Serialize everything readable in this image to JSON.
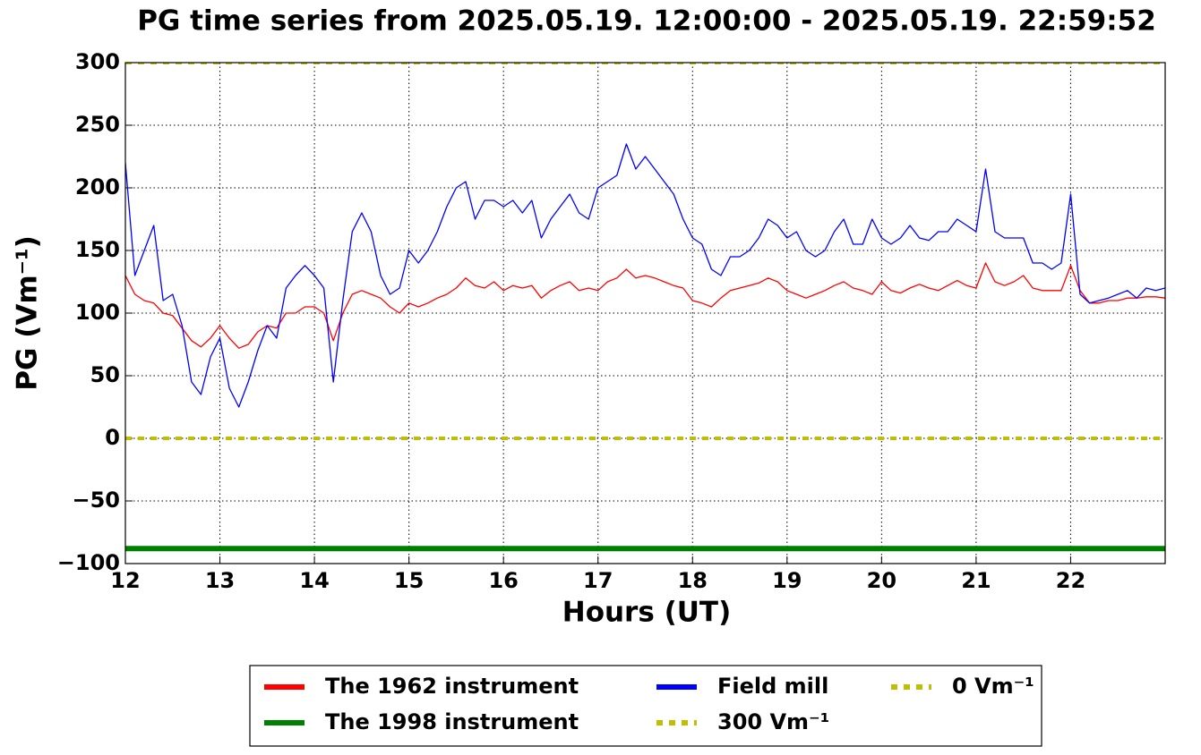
{
  "chart_data": {
    "type": "line",
    "title": "PG time series from 2025.05.19. 12:00:00 - 2025.05.19. 22:59:52",
    "xlabel": "Hours (UT)",
    "ylabel": "PG (Vm⁻¹)",
    "xlim": [
      12,
      23
    ],
    "ylim": [
      -100,
      300
    ],
    "xticks": [
      12,
      13,
      14,
      15,
      16,
      17,
      18,
      19,
      20,
      21,
      22
    ],
    "yticks": [
      300,
      250,
      200,
      150,
      100,
      50,
      0,
      {
        "value": -50,
        "label": "−50"
      },
      {
        "value": -100,
        "label": "−100"
      }
    ],
    "grid": true,
    "legend": "lower center",
    "x": [
      12.0,
      12.1,
      12.2,
      12.3,
      12.4,
      12.5,
      12.6,
      12.7,
      12.8,
      12.9,
      13.0,
      13.1,
      13.2,
      13.3,
      13.4,
      13.5,
      13.6,
      13.7,
      13.8,
      13.9,
      14.0,
      14.1,
      14.2,
      14.3,
      14.4,
      14.5,
      14.6,
      14.7,
      14.8,
      14.9,
      15.0,
      15.1,
      15.2,
      15.3,
      15.4,
      15.5,
      15.6,
      15.7,
      15.8,
      15.9,
      16.0,
      16.1,
      16.2,
      16.3,
      16.4,
      16.5,
      16.6,
      16.7,
      16.8,
      16.9,
      17.0,
      17.1,
      17.2,
      17.3,
      17.4,
      17.5,
      17.6,
      17.7,
      17.8,
      17.9,
      18.0,
      18.1,
      18.2,
      18.3,
      18.4,
      18.5,
      18.6,
      18.7,
      18.8,
      18.9,
      19.0,
      19.1,
      19.2,
      19.3,
      19.4,
      19.5,
      19.6,
      19.7,
      19.8,
      19.9,
      20.0,
      20.1,
      20.2,
      20.3,
      20.4,
      20.5,
      20.6,
      20.7,
      20.8,
      20.9,
      21.0,
      21.1,
      21.2,
      21.3,
      21.4,
      21.5,
      21.6,
      21.7,
      21.8,
      21.9,
      22.0,
      22.1,
      22.2,
      22.3,
      22.4,
      22.5,
      22.6,
      22.7,
      22.8,
      22.9,
      23.0
    ],
    "series": [
      {
        "name": "The 1962 instrument",
        "color": "#ff0000",
        "style": "solid",
        "width": 1.3,
        "values": [
          130,
          115,
          110,
          108,
          100,
          98,
          88,
          78,
          73,
          80,
          90,
          80,
          72,
          75,
          85,
          90,
          88,
          100,
          100,
          105,
          105,
          100,
          78,
          100,
          115,
          118,
          115,
          112,
          105,
          100,
          108,
          105,
          108,
          112,
          115,
          120,
          128,
          122,
          120,
          125,
          118,
          122,
          120,
          122,
          112,
          118,
          122,
          125,
          118,
          120,
          118,
          125,
          128,
          135,
          128,
          130,
          128,
          125,
          122,
          120,
          110,
          108,
          105,
          112,
          118,
          120,
          122,
          124,
          128,
          125,
          118,
          115,
          112,
          115,
          118,
          122,
          125,
          120,
          118,
          115,
          125,
          118,
          116,
          120,
          123,
          120,
          118,
          122,
          126,
          122,
          120,
          140,
          125,
          122,
          125,
          130,
          120,
          118,
          118,
          118,
          138,
          118,
          108,
          108,
          110,
          110,
          112,
          112,
          113,
          113,
          112
        ]
      },
      {
        "name": "The 1998 instrument",
        "color": "#008000",
        "style": "solid",
        "width": 6,
        "x": [
          12,
          23
        ],
        "values": [
          -88,
          -88
        ]
      },
      {
        "name": "Field mill",
        "color": "#0000ff",
        "style": "solid",
        "width": 1.3,
        "values": [
          220,
          130,
          150,
          170,
          110,
          115,
          90,
          45,
          35,
          65,
          80,
          40,
          25,
          45,
          70,
          90,
          80,
          120,
          130,
          138,
          130,
          120,
          45,
          110,
          165,
          180,
          165,
          130,
          115,
          120,
          150,
          140,
          150,
          165,
          185,
          200,
          205,
          175,
          190,
          190,
          185,
          190,
          180,
          190,
          160,
          175,
          185,
          195,
          180,
          175,
          200,
          205,
          210,
          235,
          215,
          225,
          215,
          205,
          195,
          175,
          160,
          155,
          135,
          130,
          145,
          145,
          150,
          160,
          175,
          170,
          160,
          165,
          150,
          145,
          150,
          165,
          175,
          155,
          155,
          175,
          160,
          155,
          160,
          170,
          160,
          158,
          165,
          165,
          175,
          170,
          165,
          215,
          165,
          160,
          160,
          160,
          140,
          140,
          135,
          140,
          195,
          115,
          108,
          110,
          112,
          115,
          118,
          112,
          120,
          118,
          120
        ]
      },
      {
        "name": "300 Vm⁻¹",
        "color": "#bfbf00",
        "style": "dotted",
        "width": 4,
        "x": [
          12,
          23
        ],
        "values": [
          300,
          300
        ]
      },
      {
        "name": "0 Vm⁻¹",
        "color": "#bfbf00",
        "style": "dotted",
        "width": 4,
        "x": [
          12,
          23
        ],
        "values": [
          0,
          0
        ]
      }
    ]
  }
}
